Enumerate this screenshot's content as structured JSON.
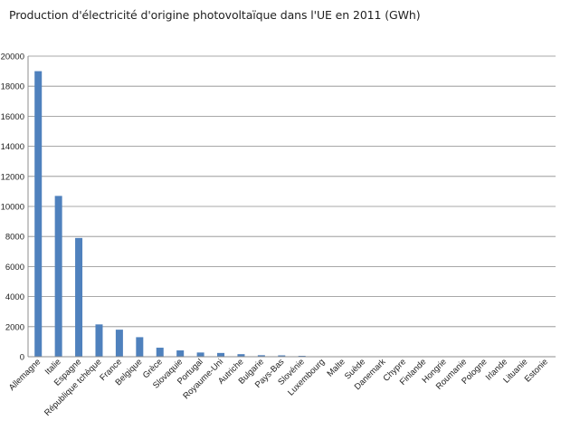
{
  "chart_data": {
    "type": "bar",
    "title": "Production d'électricité d'origine photovoltaïque dans l'UE en 2011 (GWh)",
    "xlabel": "",
    "ylabel": "",
    "ylim": [
      0,
      20000
    ],
    "yticks": [
      0,
      2000,
      4000,
      6000,
      8000,
      10000,
      12000,
      14000,
      16000,
      18000,
      20000
    ],
    "grid": true,
    "legend": "none",
    "bar_color": "#4f81bd",
    "categories": [
      "Allemagne",
      "Italie",
      "Espagne",
      "République tchèque",
      "France",
      "Belgique",
      "Grèce",
      "Slovaquie",
      "Portugal",
      "Royaume-Uni",
      "Autriche",
      "Bulgarie",
      "Pays-Bas",
      "Slovénie",
      "Luxembourg",
      "Malte",
      "Suède",
      "Danemark",
      "Chypre",
      "Finlande",
      "Hongrie",
      "Roumanie",
      "Pologne",
      "Irlande",
      "Lituanie",
      "Estonie"
    ],
    "values": [
      19000,
      10700,
      7900,
      2150,
      1800,
      1300,
      600,
      420,
      280,
      250,
      170,
      100,
      90,
      60,
      30,
      20,
      15,
      12,
      10,
      8,
      5,
      3,
      2,
      1,
      1,
      1
    ]
  }
}
